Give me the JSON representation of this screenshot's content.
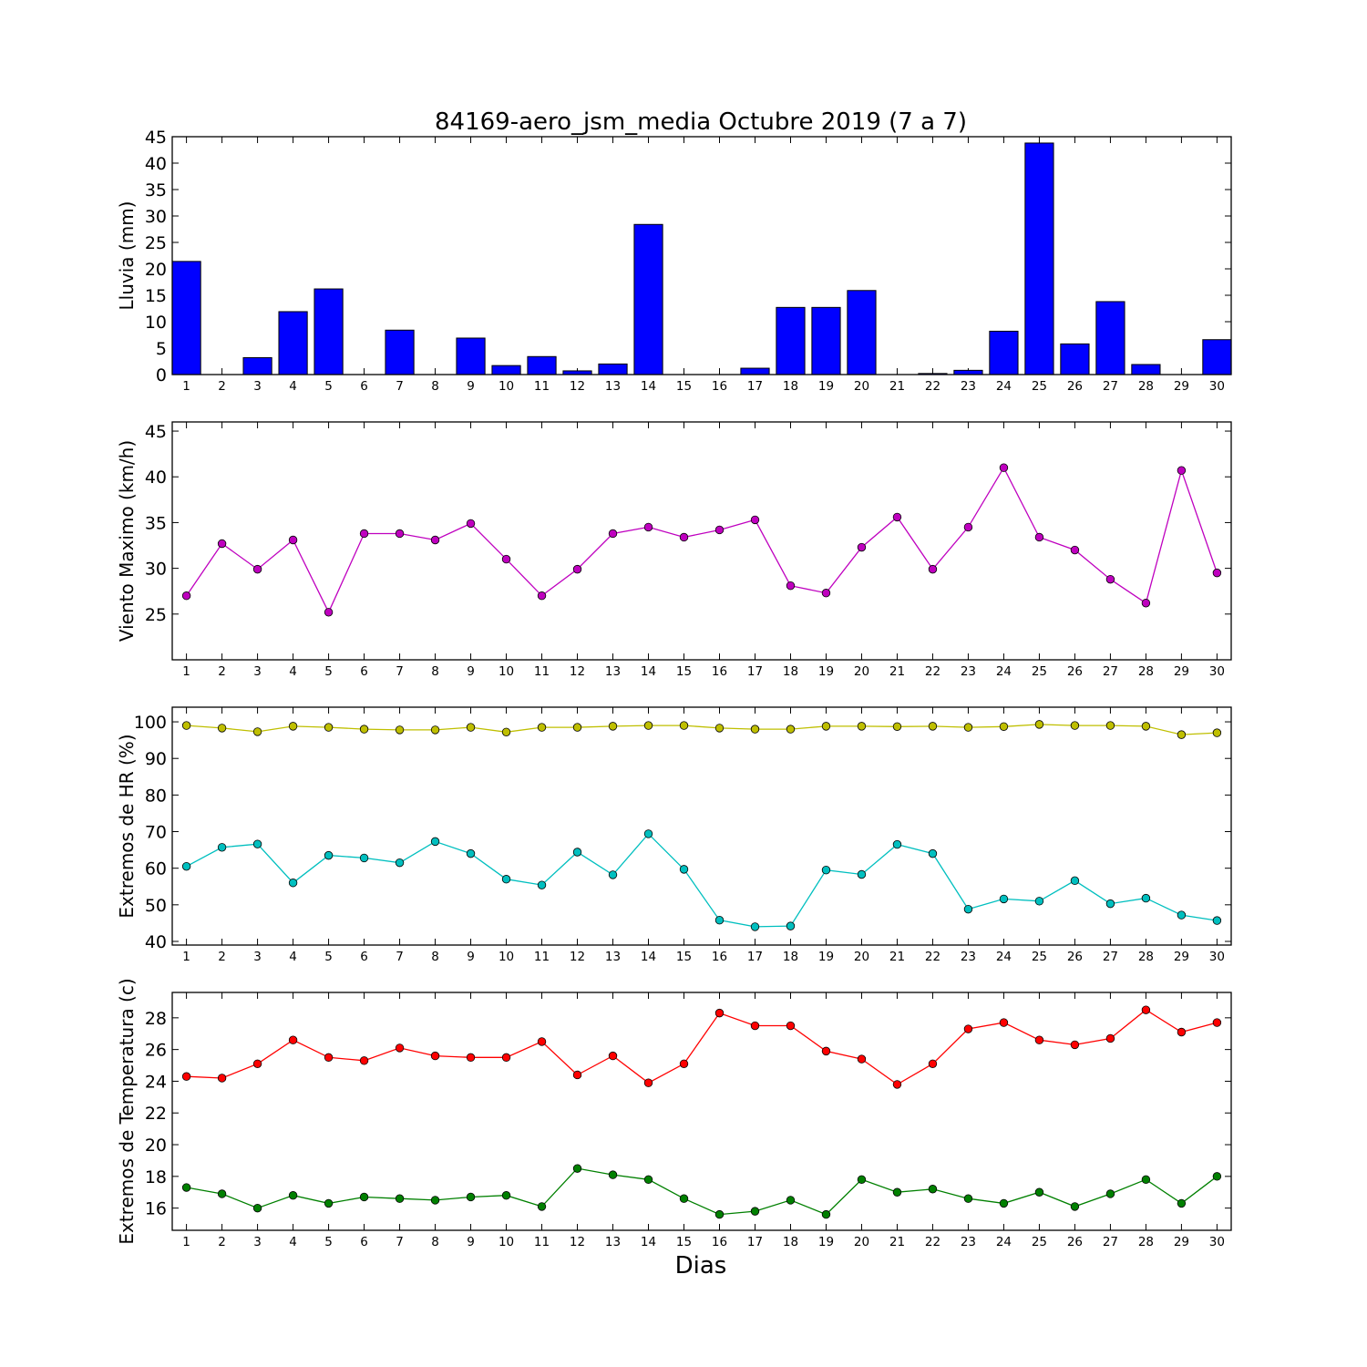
{
  "title": "84169-aero_jsm_media Octubre 2019  (7 a 7)",
  "xlabel": "Dias",
  "colors": {
    "lluvia": "#0000ff",
    "viento": "#bf00bf",
    "hr_max": "#bfbf00",
    "hr_min": "#00bfbf",
    "temp_max": "#ff0000",
    "temp_min": "#008000"
  },
  "chart_data": [
    {
      "type": "bar",
      "ylabel": "Lluvia (mm)",
      "ylim": [
        0,
        45
      ],
      "yticks": [
        0,
        5,
        10,
        15,
        20,
        25,
        30,
        35,
        40,
        45
      ],
      "x": [
        1,
        2,
        3,
        4,
        5,
        6,
        7,
        8,
        9,
        10,
        11,
        12,
        13,
        14,
        15,
        16,
        17,
        18,
        19,
        20,
        21,
        22,
        23,
        24,
        25,
        26,
        27,
        28,
        29,
        30
      ],
      "values": [
        21.4,
        0,
        3.2,
        11.9,
        16.2,
        0,
        8.4,
        0,
        6.9,
        1.7,
        3.4,
        0.7,
        2.0,
        28.4,
        0,
        0,
        1.2,
        12.7,
        12.7,
        15.9,
        0,
        0.2,
        0.8,
        8.2,
        43.8,
        5.8,
        13.8,
        1.9,
        0,
        6.6
      ],
      "grid": false
    },
    {
      "type": "line",
      "ylabel": "Viento Maximo (km/h)",
      "ylim": [
        20,
        46
      ],
      "yticks": [
        25,
        30,
        35,
        40,
        45
      ],
      "x": [
        1,
        2,
        3,
        4,
        5,
        6,
        7,
        8,
        9,
        10,
        11,
        12,
        13,
        14,
        15,
        16,
        17,
        18,
        19,
        20,
        21,
        22,
        23,
        24,
        25,
        26,
        27,
        28,
        29,
        30
      ],
      "series": [
        {
          "values": [
            27.0,
            32.7,
            29.9,
            33.1,
            25.2,
            33.8,
            33.8,
            33.1,
            34.9,
            31.0,
            27.0,
            29.9,
            33.8,
            34.5,
            33.4,
            34.2,
            35.3,
            28.1,
            27.3,
            32.3,
            35.6,
            29.9,
            34.5,
            41.0,
            33.4,
            32.0,
            28.8,
            26.2,
            40.7,
            29.5
          ]
        }
      ],
      "grid": false
    },
    {
      "type": "line",
      "ylabel": "Extremos de HR (%)",
      "ylim": [
        39,
        104
      ],
      "yticks": [
        40,
        50,
        60,
        70,
        80,
        90,
        100
      ],
      "x": [
        1,
        2,
        3,
        4,
        5,
        6,
        7,
        8,
        9,
        10,
        11,
        12,
        13,
        14,
        15,
        16,
        17,
        18,
        19,
        20,
        21,
        22,
        23,
        24,
        25,
        26,
        27,
        28,
        29,
        30
      ],
      "series": [
        {
          "values": [
            99,
            98.3,
            97.3,
            98.8,
            98.5,
            98,
            97.8,
            97.8,
            98.5,
            97.2,
            98.5,
            98.5,
            98.8,
            99,
            99,
            98.3,
            98,
            98,
            98.8,
            98.8,
            98.7,
            98.8,
            98.5,
            98.7,
            99.3,
            99,
            99,
            98.8,
            96.5,
            97
          ]
        },
        {
          "values": [
            60.5,
            65.7,
            66.6,
            56,
            63.5,
            62.8,
            61.5,
            67.3,
            64,
            57,
            55.4,
            64.4,
            58.2,
            69.4,
            59.7,
            45.8,
            44,
            44.2,
            59.5,
            58.3,
            66.5,
            64,
            48.8,
            51.6,
            51,
            56.6,
            50.3,
            51.8,
            47.2,
            45.7
          ]
        }
      ],
      "grid": false
    },
    {
      "type": "line",
      "ylabel": "Extremos de Temperatura (c)",
      "ylim": [
        14.6,
        29.6
      ],
      "yticks": [
        16,
        18,
        20,
        22,
        24,
        26,
        28
      ],
      "x": [
        1,
        2,
        3,
        4,
        5,
        6,
        7,
        8,
        9,
        10,
        11,
        12,
        13,
        14,
        15,
        16,
        17,
        18,
        19,
        20,
        21,
        22,
        23,
        24,
        25,
        26,
        27,
        28,
        29,
        30
      ],
      "series": [
        {
          "values": [
            24.3,
            24.2,
            25.1,
            26.6,
            25.5,
            25.3,
            26.1,
            25.6,
            25.5,
            25.5,
            26.5,
            24.4,
            25.6,
            23.9,
            25.1,
            28.3,
            27.5,
            27.5,
            25.9,
            25.4,
            23.8,
            25.1,
            27.3,
            27.7,
            26.6,
            26.3,
            26.7,
            28.5,
            27.1,
            27.7
          ]
        },
        {
          "values": [
            17.3,
            16.9,
            16.0,
            16.8,
            16.3,
            16.7,
            16.6,
            16.5,
            16.7,
            16.8,
            16.1,
            18.5,
            18.1,
            17.8,
            16.6,
            15.6,
            15.8,
            16.5,
            15.6,
            17.8,
            17.0,
            17.2,
            16.6,
            16.3,
            17.0,
            16.1,
            16.9,
            17.8,
            16.3,
            18.0
          ]
        }
      ],
      "grid": false
    }
  ]
}
